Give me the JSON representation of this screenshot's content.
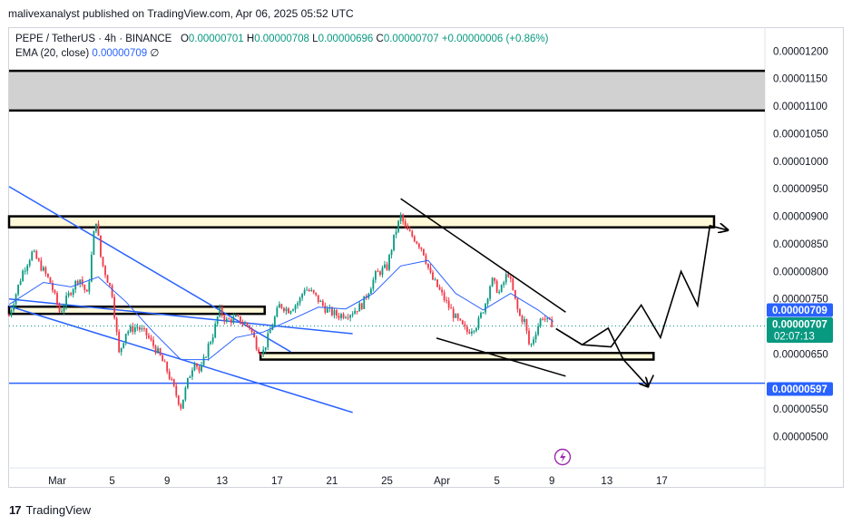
{
  "header": {
    "publisher": "malivexanalyst published on TradingView.com, Apr 06, 2025 05:52 UTC"
  },
  "legend": {
    "symbol": "PEPE / TetherUS · 4h · BINANCE",
    "open_label": "O",
    "open": "0.00000701",
    "high_label": "H",
    "high": "0.00000708",
    "low_label": "L",
    "low": "0.00000696",
    "close_label": "C",
    "close": "0.00000707",
    "change": "+0.00000006 (+0.86%)",
    "ema_label": "EMA (20, close)",
    "ema_value": "0.00000709",
    "ema_suffix": "∅"
  },
  "footer": {
    "logo": "17",
    "brand": "TradingView"
  },
  "colors": {
    "up": "#089981",
    "down": "#f23645",
    "ema": "#2962ff",
    "channel": "#2962ff",
    "zone_fill": "#fff9d9",
    "supply_fill": "#d1d1d1",
    "tag_blue": "#2962ff",
    "tag_green": "#089981"
  },
  "chart_data": {
    "type": "candlestick",
    "symbol": "PEPE / TetherUS",
    "interval": "4h",
    "exchange": "BINANCE",
    "y_ticks": [
      "0.00001200",
      "0.00001150",
      "0.00001100",
      "0.00001050",
      "0.00001000",
      "0.00000950",
      "0.00000900",
      "0.00000850",
      "0.00000800",
      "0.00000750",
      "0.00000650",
      "0.00000550",
      "0.00000500"
    ],
    "y_tick_values": [
      1200,
      1150,
      1100,
      1050,
      1000,
      950,
      900,
      850,
      800,
      750,
      650,
      550,
      500
    ],
    "ylim": [
      450,
      1240
    ],
    "x_ticks": [
      "Mar",
      "5",
      "9",
      "13",
      "17",
      "21",
      "25",
      "Apr",
      "5",
      "9",
      "13",
      "17"
    ],
    "x_tick_days": [
      1,
      5,
      9,
      13,
      17,
      21,
      25,
      29,
      33,
      37,
      41,
      45
    ],
    "xlim_days": [
      -2.5,
      52.5
    ],
    "price_unit": "1e-8 USDT",
    "anchors": [
      [
        -2.5,
        720
      ],
      [
        -1.5,
        800
      ],
      [
        -0.8,
        835
      ],
      [
        0.5,
        780
      ],
      [
        1.2,
        725
      ],
      [
        2.0,
        765
      ],
      [
        2.6,
        790
      ],
      [
        3.2,
        755
      ],
      [
        3.8,
        900
      ],
      [
        4.2,
        820
      ],
      [
        5.0,
        760
      ],
      [
        5.5,
        650
      ],
      [
        6.0,
        690
      ],
      [
        6.8,
        700
      ],
      [
        7.5,
        685
      ],
      [
        8.4,
        650
      ],
      [
        9.0,
        620
      ],
      [
        9.6,
        580
      ],
      [
        10.0,
        555
      ],
      [
        10.5,
        600
      ],
      [
        11.0,
        640
      ],
      [
        11.4,
        615
      ],
      [
        12.0,
        665
      ],
      [
        12.4,
        690
      ],
      [
        12.8,
        730
      ],
      [
        13.3,
        710
      ],
      [
        14.0,
        715
      ],
      [
        15.0,
        700
      ],
      [
        15.6,
        660
      ],
      [
        16.0,
        655
      ],
      [
        16.6,
        700
      ],
      [
        17.2,
        740
      ],
      [
        17.8,
        730
      ],
      [
        18.6,
        745
      ],
      [
        19.0,
        770
      ],
      [
        19.6,
        760
      ],
      [
        20.6,
        730
      ],
      [
        21.4,
        720
      ],
      [
        22.4,
        725
      ],
      [
        23.2,
        740
      ],
      [
        24.2,
        795
      ],
      [
        25.0,
        808
      ],
      [
        25.6,
        870
      ],
      [
        26.0,
        900
      ],
      [
        26.4,
        875
      ],
      [
        27.0,
        860
      ],
      [
        27.6,
        840
      ],
      [
        28.2,
        790
      ],
      [
        28.6,
        775
      ],
      [
        29.4,
        740
      ],
      [
        30.0,
        715
      ],
      [
        30.8,
        690
      ],
      [
        31.6,
        705
      ],
      [
        32.2,
        745
      ],
      [
        32.6,
        785
      ],
      [
        33.2,
        760
      ],
      [
        33.8,
        800
      ],
      [
        34.1,
        770
      ],
      [
        34.6,
        720
      ],
      [
        35.0,
        710
      ],
      [
        35.4,
        660
      ],
      [
        35.8,
        690
      ],
      [
        36.3,
        720
      ],
      [
        36.8,
        705
      ],
      [
        37.1,
        707
      ]
    ],
    "ema": {
      "label": "EMA (20, close)",
      "points": [
        [
          -2.5,
          740
        ],
        [
          0,
          780
        ],
        [
          2,
          772
        ],
        [
          4,
          790
        ],
        [
          6,
          745
        ],
        [
          8,
          690
        ],
        [
          10,
          640
        ],
        [
          12,
          640
        ],
        [
          14,
          680
        ],
        [
          16,
          690
        ],
        [
          18,
          712
        ],
        [
          20,
          735
        ],
        [
          22,
          732
        ],
        [
          24,
          760
        ],
        [
          26,
          810
        ],
        [
          28,
          820
        ],
        [
          30,
          760
        ],
        [
          32,
          730
        ],
        [
          34,
          760
        ],
        [
          36,
          730
        ],
        [
          37.1,
          709
        ]
      ]
    },
    "horizontal_zones": [
      {
        "name": "supply-zone",
        "from_day": -2.5,
        "to_day": 52.5,
        "low": 1092,
        "high": 1164
      },
      {
        "name": "resistance-zone",
        "from_day": -2.5,
        "to_day": 48.8,
        "low": 880,
        "high": 900
      },
      {
        "name": "mid-support-zone",
        "from_day": -2.5,
        "to_day": 16.1,
        "low": 723,
        "high": 736
      },
      {
        "name": "support-zone",
        "from_day": 15.8,
        "to_day": 44.4,
        "low": 640,
        "high": 652
      }
    ],
    "levels": [
      {
        "name": "support-line",
        "value": 597
      }
    ],
    "channel_lines": [
      [
        [
          -2.5,
          954
        ],
        [
          18.0,
          654
        ]
      ],
      [
        [
          -2.5,
          737
        ],
        [
          22.5,
          544
        ]
      ],
      [
        [
          -2.5,
          750
        ],
        [
          22.5,
          687
        ]
      ]
    ],
    "wedge_lines": [
      [
        [
          26.0,
          932
        ],
        [
          38.0,
          726
        ]
      ],
      [
        [
          28.6,
          679
        ],
        [
          38.0,
          610
        ]
      ]
    ],
    "projection_path": [
      [
        [
          37.3,
          696
        ],
        [
          39.2,
          667
        ],
        [
          41.1,
          697
        ],
        [
          42.2,
          640
        ],
        [
          44.0,
          591
        ]
      ],
      [
        [
          37.3,
          696
        ],
        [
          39.2,
          667
        ],
        [
          41.3,
          663
        ],
        [
          43.5,
          739
        ],
        [
          44.9,
          680
        ],
        [
          46.4,
          800
        ],
        [
          47.6,
          738
        ],
        [
          48.5,
          883
        ],
        [
          49.8,
          875
        ]
      ]
    ],
    "price_tags": [
      {
        "name": "ema-tag",
        "value": "0.00000709",
        "price": 709,
        "color": "#2962ff"
      },
      {
        "name": "last-price-tag",
        "value": "0.00000707",
        "price": 696,
        "sub": "02:07:13",
        "color": "#089981"
      },
      {
        "name": "support-tag",
        "value": "0.00000597",
        "price": 597,
        "color": "#2962ff"
      }
    ]
  }
}
